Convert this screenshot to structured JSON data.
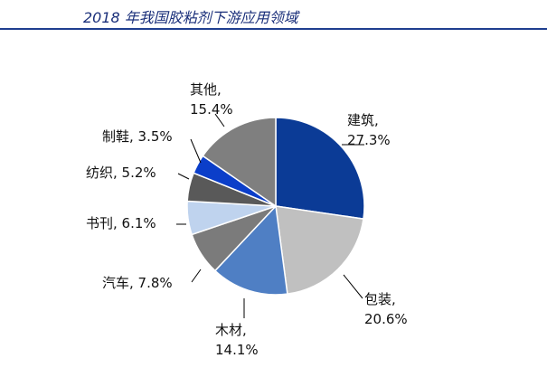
{
  "title": "2018 年我国胶粘剂下游应用领域",
  "colors": {
    "title": "#1a2f7a",
    "rule": "#1f3e8f"
  },
  "chart_data": {
    "type": "pie",
    "title": "2018 年我国胶粘剂下游应用领域",
    "unit": "%",
    "start_angle_deg": 0,
    "direction": "clockwise",
    "slices": [
      {
        "name": "建筑",
        "value": 27.3,
        "label_line1": "建筑,",
        "label_line2": "27.3%",
        "color": "#0b3b96"
      },
      {
        "name": "包装",
        "value": 20.6,
        "label_line1": "包装,",
        "label_line2": "20.6%",
        "color": "#c0c0c0"
      },
      {
        "name": "木材",
        "value": 14.1,
        "label_line1": "木材,",
        "label_line2": "14.1%",
        "color": "#4f7fc4"
      },
      {
        "name": "汽车",
        "value": 7.8,
        "label_line1": "汽车, 7.8%",
        "label_line2": "",
        "color": "#7b7b7b"
      },
      {
        "name": "书刊",
        "value": 6.1,
        "label_line1": "书刊, 6.1%",
        "label_line2": "",
        "color": "#bfd3ee"
      },
      {
        "name": "纺织",
        "value": 5.2,
        "label_line1": "纺织, 5.2%",
        "label_line2": "",
        "color": "#595959"
      },
      {
        "name": "制鞋",
        "value": 3.5,
        "label_line1": "制鞋, 3.5%",
        "label_line2": "",
        "color": "#0b3ec9"
      },
      {
        "name": "其他",
        "value": 15.4,
        "label_line1": "其他,",
        "label_line2": "15.4%",
        "color": "#7f7f7f"
      }
    ]
  }
}
